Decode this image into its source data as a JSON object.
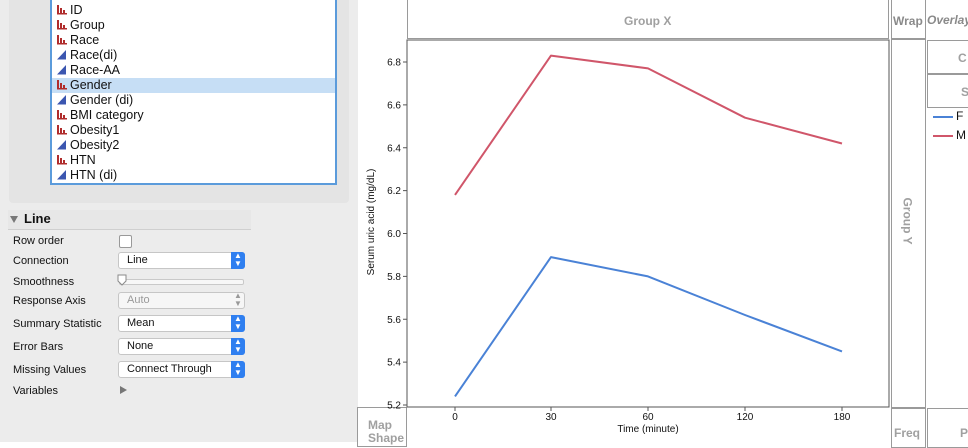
{
  "columns": {
    "items": [
      {
        "label": "ID",
        "type": "nominal"
      },
      {
        "label": "Group",
        "type": "nominal"
      },
      {
        "label": "Race",
        "type": "nominal"
      },
      {
        "label": "Race(di)",
        "type": "continuous"
      },
      {
        "label": "Race-AA",
        "type": "continuous"
      },
      {
        "label": "Gender",
        "type": "nominal",
        "selected": true
      },
      {
        "label": "Gender (di)",
        "type": "continuous"
      },
      {
        "label": "BMI category",
        "type": "nominal"
      },
      {
        "label": "Obesity1",
        "type": "nominal"
      },
      {
        "label": "Obesity2",
        "type": "continuous"
      },
      {
        "label": "HTN",
        "type": "nominal"
      },
      {
        "label": "HTN (di)",
        "type": "continuous"
      }
    ]
  },
  "line_panel": {
    "title": "Line",
    "row_order_label": "Row order",
    "connection_label": "Connection",
    "connection_value": "Line",
    "smoothness_label": "Smoothness",
    "response_axis_label": "Response Axis",
    "response_axis_value": "Auto",
    "summary_statistic_label": "Summary Statistic",
    "summary_statistic_value": "Mean",
    "error_bars_label": "Error Bars",
    "error_bars_value": "None",
    "missing_values_label": "Missing Values",
    "missing_values_value": "Connect Through",
    "variables_label": "Variables"
  },
  "graph": {
    "group_x": "Group X",
    "group_y": "Group Y",
    "wrap": "Wrap",
    "overlay": "Overlay",
    "map_shape": "Map Shape",
    "freq": "Freq",
    "right_c": "C",
    "right_s": "S",
    "right_p": "P"
  },
  "chart_data": {
    "type": "line",
    "categories": [
      "0",
      "30",
      "60",
      "120",
      "180"
    ],
    "series": [
      {
        "name": "F",
        "values": [
          5.24,
          5.89,
          5.8,
          5.62,
          5.45
        ],
        "color": "#4a82d6"
      },
      {
        "name": "M",
        "values": [
          6.18,
          6.83,
          6.77,
          6.54,
          6.42
        ],
        "color": "#d0566a"
      }
    ],
    "xlabel": "Time (minute)",
    "ylabel": "Serum uric acid (mg/dL)",
    "ylim": [
      5.2,
      6.9
    ],
    "yticks": [
      "5.2",
      "5.4",
      "5.6",
      "5.8",
      "6.0",
      "6.2",
      "6.4",
      "6.6",
      "6.8"
    ],
    "grid": false,
    "legend_position": "right"
  },
  "colors": {
    "accent": "#2f7ff0",
    "nominal_icon": "#b02c2c",
    "continuous_icon": "#3b56b0"
  }
}
